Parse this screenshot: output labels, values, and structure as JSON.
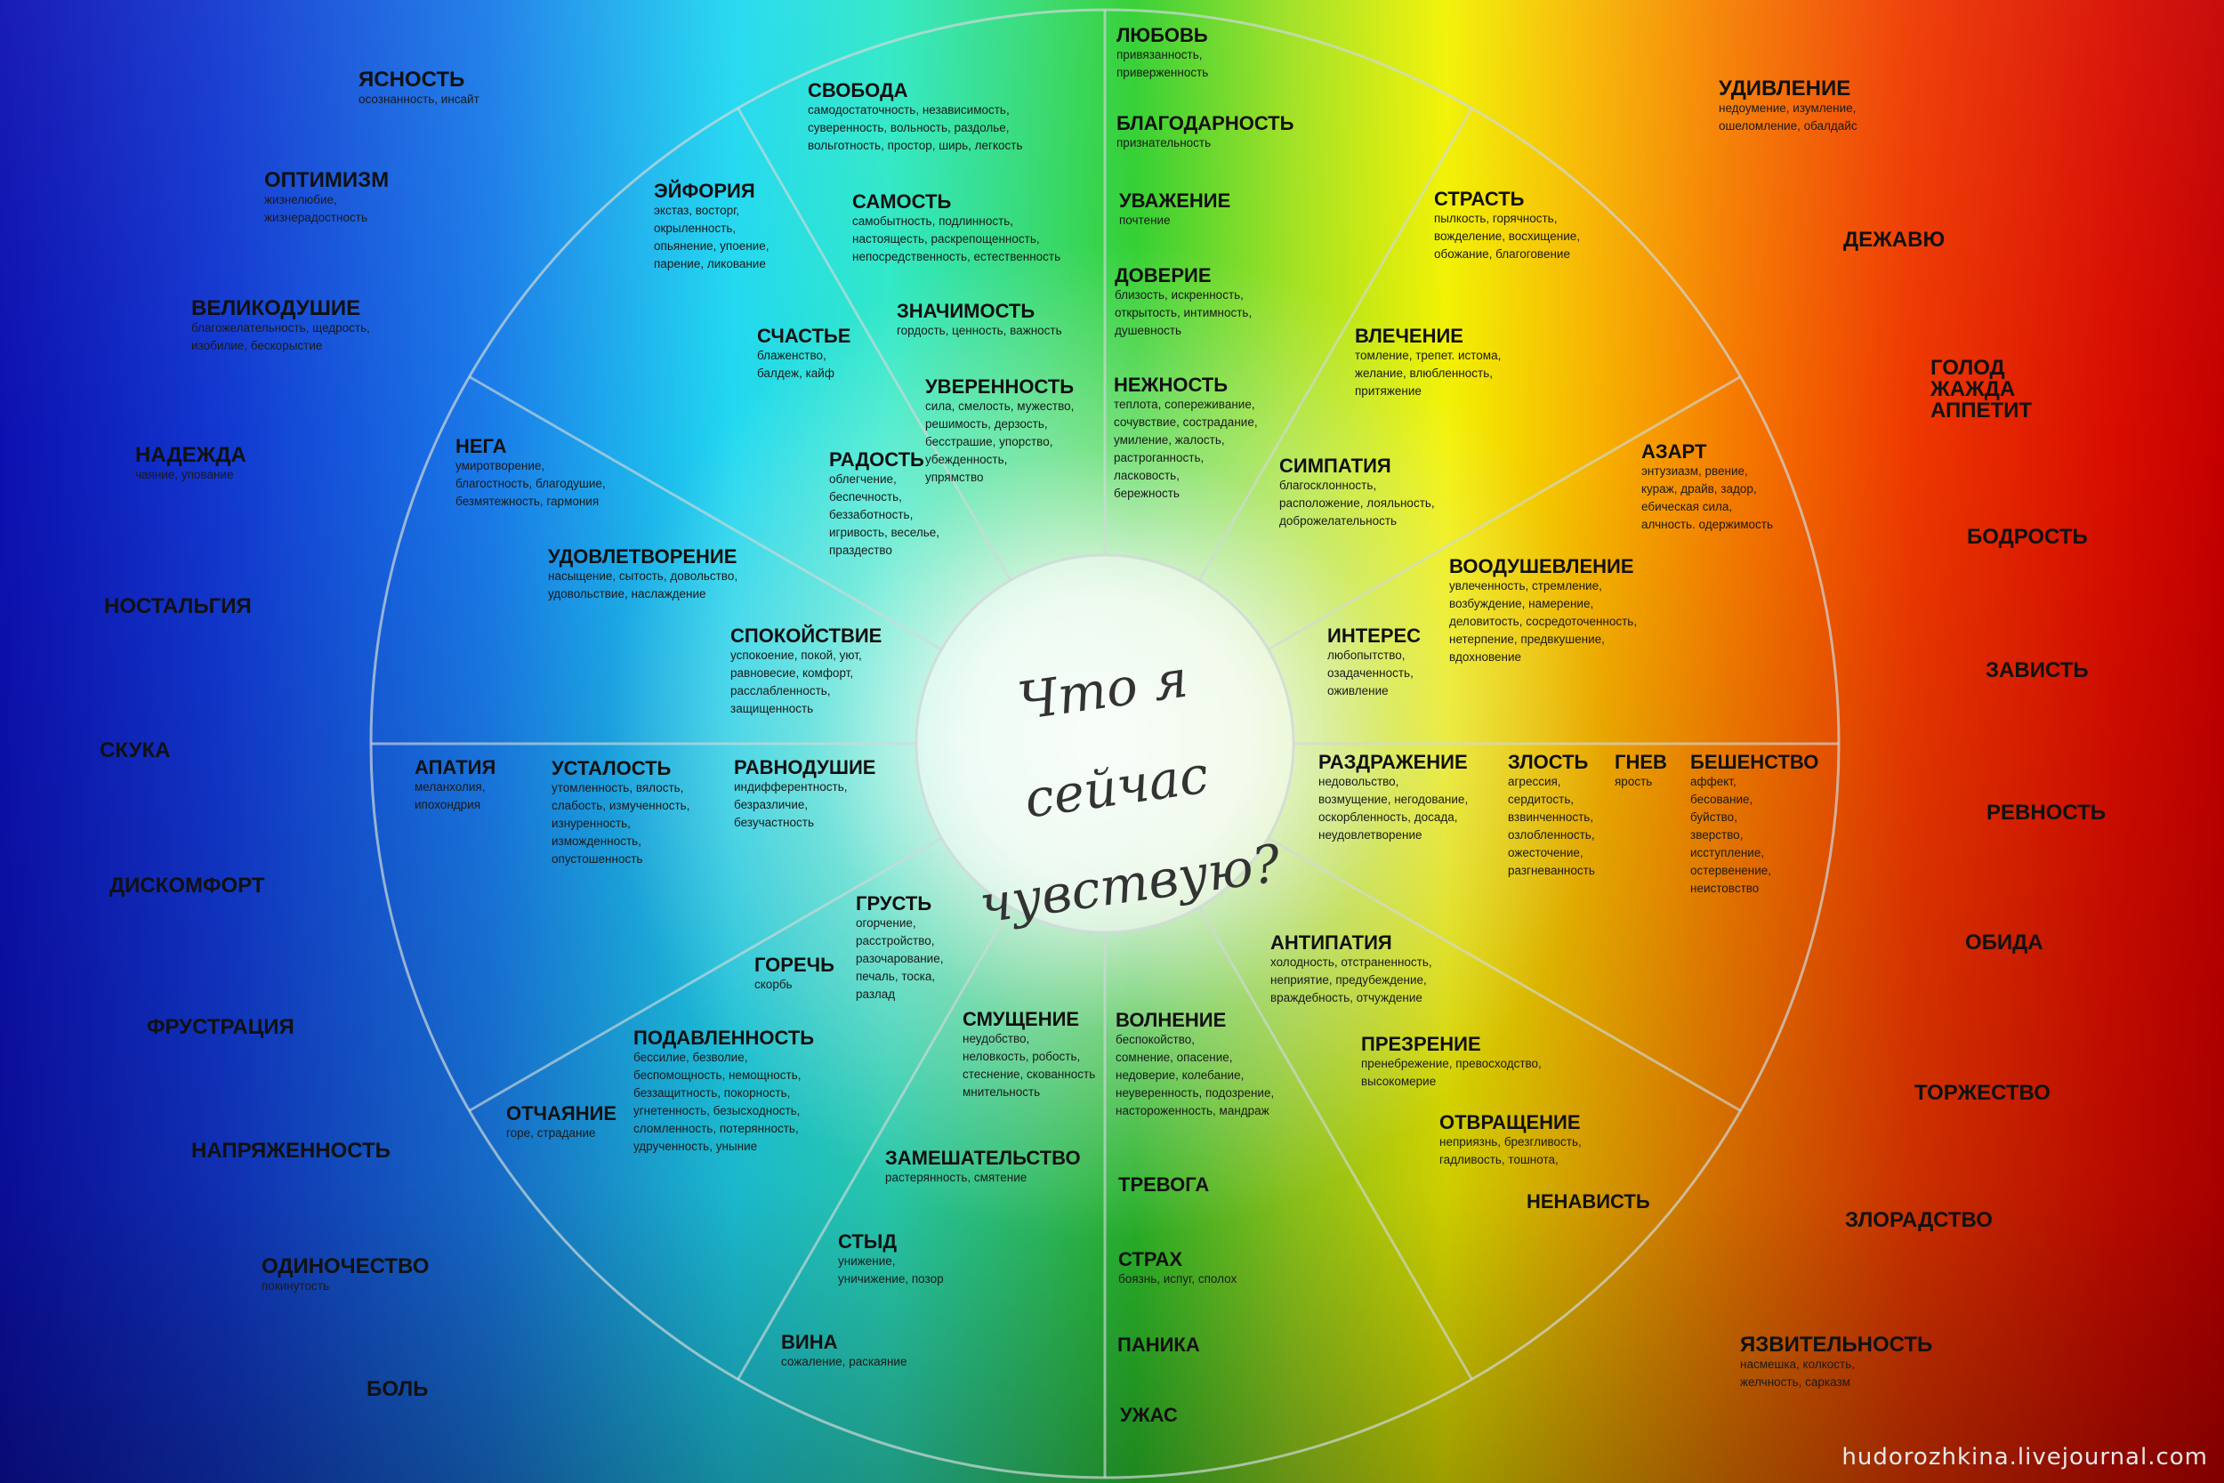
{
  "center_title": "Что я сейчас чувствую?",
  "watermark": "hudorozhkina.livejournal.com",
  "colors": {
    "left": "#0d10b0",
    "center": "#2fcf2f",
    "right": "#c40000",
    "wheel_lines": "#cfd8d8"
  },
  "inner_wedges": [
    {
      "title": "СВОБОДА",
      "sub": "самодостаточность, независимость,\nсуверенность, вольность, раздолье,\nвольготность, простор, ширь, легкость"
    },
    {
      "title": "САМОСТЬ",
      "sub": "самобытность, подлинность,\nнастоящесть, раскрепощенность,\nнепосредственность, естественность"
    },
    {
      "title": "ЗНАЧИМОСТЬ",
      "sub": "гордость, ценность, важность"
    },
    {
      "title": "УВЕРЕННОСТЬ",
      "sub": "сила, смелость, мужество,\nрешимость, дерзость,\nбесстрашие, упорство,\nубежденность,\nупрямство"
    },
    {
      "title": "ЭЙФОРИЯ",
      "sub": "экстаз, восторг,\nокрыленность,\nопьянение, упоение,\nпарение, ликование"
    },
    {
      "title": "СЧАСТЬЕ",
      "sub": "блаженство,\nбалдеж, кайф"
    },
    {
      "title": "РАДОСТЬ",
      "sub": "облегчение,\nбеспечность,\nбеззаботность,\nигривость, веселье,\nпраздество"
    },
    {
      "title": "НЕГА",
      "sub": "умиротворение,\nблагостность, благодушие,\nбезмятежность, гармония"
    },
    {
      "title": "УДОВЛЕТВОРЕНИЕ",
      "sub": "насыщение, сытость, довольство,\nудовольствие, наслаждение"
    },
    {
      "title": "СПОКОЙСТВИЕ",
      "sub": "успокоение, покой, уют,\nравновесие, комфорт,\nрасслабленность,\nзащищенность"
    },
    {
      "title": "АПАТИЯ",
      "sub": "меланхолия,\nипохондрия"
    },
    {
      "title": "УСТАЛОСТЬ",
      "sub": "утомленность, вялость,\nслабость, измученность,\nизнуренность,\nизможденность,\nопустошенность"
    },
    {
      "title": "РАВНОДУШИЕ",
      "sub": "индифферентность,\nбезразличие,\nбезучастность"
    },
    {
      "title": "ГРУСТЬ",
      "sub": "огорчение,\nрасстройство,\nразочарование,\nпечаль, тоска,\nразлад"
    },
    {
      "title": "ГОРЕЧЬ",
      "sub": "скорбь"
    },
    {
      "title": "ПОДАВЛЕННОСТЬ",
      "sub": "бессилие, безволие,\nбеспомощность, немощность,\nбеззащитность, покорность,\nугнетенность, безысходность,\nсломленность, потерянность,\nудрученность, уныние"
    },
    {
      "title": "ОТЧАЯНИЕ",
      "sub": "горе, страдание"
    },
    {
      "title": "СМУЩЕНИЕ",
      "sub": "неудобство,\nнеловкость, робость,\nстеснение, скованность\nмнительность"
    },
    {
      "title": "ЗАМЕШАТЕЛЬСТВО",
      "sub": "растерянность, смятение"
    },
    {
      "title": "СТЫД",
      "sub": "унижение,\nуничижение, позор"
    },
    {
      "title": "ВИНА",
      "sub": "сожаление, раскаяние"
    },
    {
      "title": "ЛЮБОВЬ",
      "sub": "привязанность,\nприверженность"
    },
    {
      "title": "БЛАГОДАРНОСТЬ",
      "sub": "признательность"
    },
    {
      "title": "УВАЖЕНИЕ",
      "sub": "почтение"
    },
    {
      "title": "ДОВЕРИЕ",
      "sub": "близость, искренность,\nоткрытость, интимность,\nдушевность"
    },
    {
      "title": "НЕЖНОСТЬ",
      "sub": "теплота, сопереживание,\nсочувствие, сострадание,\nумиление, жалость,\nрастроганность,\nласковость,\nбережность"
    },
    {
      "title": "СТРАСТЬ",
      "sub": "пылкость, горячность,\nвожделение, восхищение,\nобожание, благоговение"
    },
    {
      "title": "ВЛЕЧЕНИЕ",
      "sub": "томление, трепет. истома,\nжелание, влюбленность,\nпритяжение"
    },
    {
      "title": "СИМПАТИЯ",
      "sub": "благосклонность,\nрасположение, лояльность,\nдоброжелательность"
    },
    {
      "title": "АЗАРТ",
      "sub": "энтузиазм, рвение,\nкураж, драйв, задор,\nебическая сила,\nалчность. одержимость"
    },
    {
      "title": "ВООДУШЕВЛЕНИЕ",
      "sub": "увлеченность, стремление,\nвозбуждение, намерение,\nделовитость, сосредоточенность,\nнетерпение, предвкушение,\nвдохновение"
    },
    {
      "title": "ИНТЕРЕС",
      "sub": "любопытство,\nозадаченность,\nоживление"
    },
    {
      "title": "РАЗДРАЖЕНИЕ",
      "sub": "недовольство,\nвозмущение, негодование,\nоскорбленность, досада,\nнеудовлетворение"
    },
    {
      "title": "ЗЛОСТЬ",
      "sub": "агрессия,\nсердитость,\nвзвинченность,\nозлобленность,\nожесточение,\nразгневанность"
    },
    {
      "title": "ГНЕВ",
      "sub": "ярость"
    },
    {
      "title": "БЕШЕНСТВО",
      "sub": "аффект,\nбесование,\nбуйство,\nзверство,\nисступление,\nостервенение,\nнеистовство"
    },
    {
      "title": "АНТИПАТИЯ",
      "sub": "холодность, отстраненность,\nнеприятие, предубеждение,\nвраждебность, отчуждение"
    },
    {
      "title": "ПРЕЗРЕНИЕ",
      "sub": "пренебрежение, превосходство,\nвысокомерие"
    },
    {
      "title": "ОТВРАЩЕНИЕ",
      "sub": "неприязнь, брезгливость,\nгадливость, тошнота,"
    },
    {
      "title": "НЕНАВИСТЬ",
      "sub": ""
    },
    {
      "title": "ВОЛНЕНИЕ",
      "sub": "беспокойство,\nсомнение, опасение,\nнедоверие, колебание,\nнеуверенность, подозрение,\nнастороженность, мандраж"
    },
    {
      "title": "ТРЕВОГА",
      "sub": ""
    },
    {
      "title": "СТРАХ",
      "sub": "боязнь, испуг, сполох"
    },
    {
      "title": "ПАНИКА",
      "sub": ""
    },
    {
      "title": "УЖАС",
      "sub": ""
    }
  ],
  "outer_left": [
    {
      "title": "ЯСНОСТЬ",
      "sub": "осознанность, инсайт"
    },
    {
      "title": "ОПТИМИЗМ",
      "sub": "жизнелюбие,\nжизнерадостность"
    },
    {
      "title": "ВЕЛИКОДУШИЕ",
      "sub": "благожелательность, щедрость,\nизобилие, бескорыстие"
    },
    {
      "title": "НАДЕЖДА",
      "sub": "чаяние, упование"
    },
    {
      "title": "НОСТАЛЬГИЯ",
      "sub": ""
    },
    {
      "title": "СКУКА",
      "sub": ""
    },
    {
      "title": "ДИСКОМФОРТ",
      "sub": ""
    },
    {
      "title": "ФРУСТРАЦИЯ",
      "sub": ""
    },
    {
      "title": "НАПРЯЖЕННОСТЬ",
      "sub": ""
    },
    {
      "title": "ОДИНОЧЕСТВО",
      "sub": "покинутость"
    },
    {
      "title": "БОЛЬ",
      "sub": ""
    }
  ],
  "outer_right": [
    {
      "title": "УДИВЛЕНИЕ",
      "sub": "недоумение, изумление,\nошеломление, обалдайс"
    },
    {
      "title": "ДЕЖАВЮ",
      "sub": ""
    },
    {
      "title": "ГОЛОД\nЖАЖДА\nАППЕТИТ",
      "sub": ""
    },
    {
      "title": "БОДРОСТЬ",
      "sub": ""
    },
    {
      "title": "ЗАВИСТЬ",
      "sub": ""
    },
    {
      "title": "РЕВНОСТЬ",
      "sub": ""
    },
    {
      "title": "ОБИДА",
      "sub": ""
    },
    {
      "title": "ТОРЖЕСТВО",
      "sub": ""
    },
    {
      "title": "ЗЛОРАДСТВО",
      "sub": ""
    },
    {
      "title": "ЯЗВИТЕЛЬНОСТЬ",
      "sub": "насмешка, колкость,\nжелчность, сарказм"
    }
  ]
}
